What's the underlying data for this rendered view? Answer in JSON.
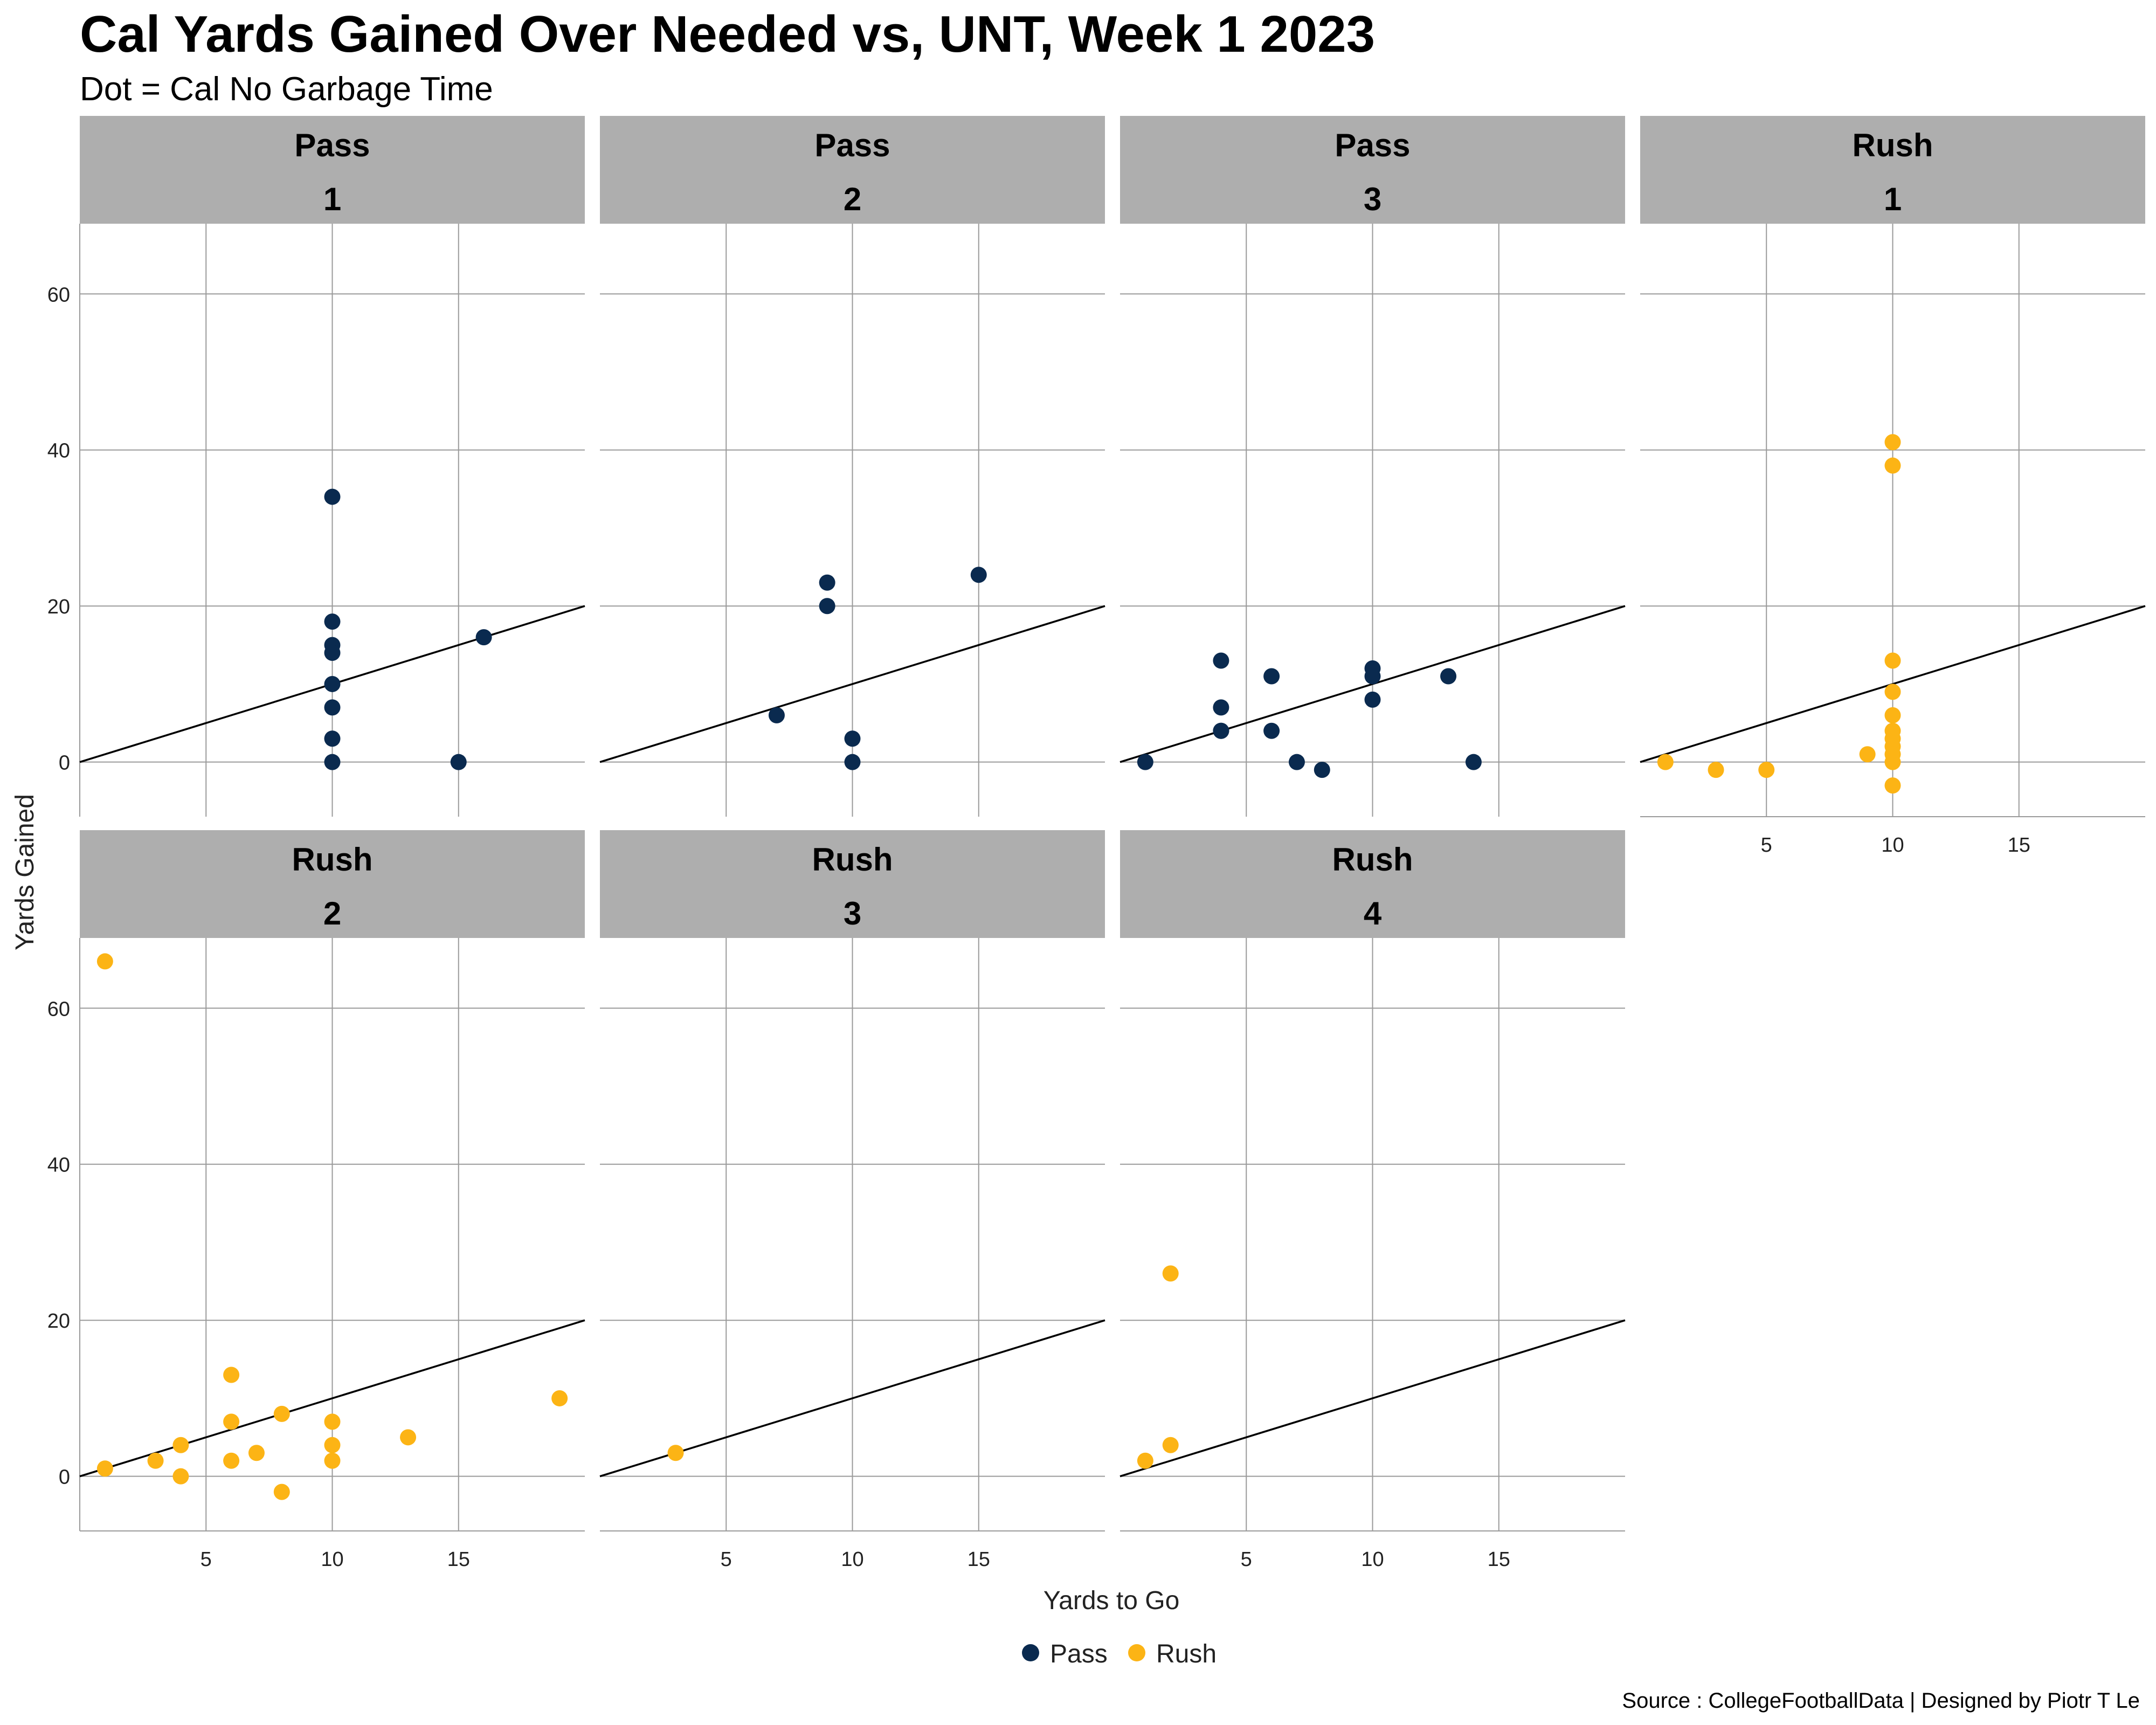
{
  "chart_data": {
    "type": "scatter",
    "title": "Cal Yards Gained Over Needed vs, UNT, Week 1 2023",
    "subtitle": "Dot = Cal No Garbage Time",
    "xlabel": "Yards to Go",
    "ylabel": "Yards Gained",
    "caption": "Source : CollegeFootballData | Designed by Piotr T Le",
    "xlim": [
      0,
      20
    ],
    "ylim": [
      -7,
      69
    ],
    "x_ticks": [
      5,
      10,
      15
    ],
    "y_ticks": [
      0,
      20,
      40,
      60
    ],
    "reference_line": {
      "slope": 1,
      "intercept": 0
    },
    "colors": {
      "Pass": "#0a2a4f",
      "Rush": "#fcb415",
      "strip": "#aeaeae",
      "grid": "#9a9a9a",
      "line": "#000000"
    },
    "legend": [
      {
        "label": "Pass",
        "color": "#0a2a4f"
      },
      {
        "label": "Rush",
        "color": "#fcb415"
      }
    ],
    "legend_position": "bottom",
    "facets": [
      {
        "play_type": "Pass",
        "down": "1",
        "points": [
          [
            10,
            34
          ],
          [
            10,
            18
          ],
          [
            10,
            15
          ],
          [
            10,
            14
          ],
          [
            10,
            10
          ],
          [
            10,
            7
          ],
          [
            10,
            3
          ],
          [
            10,
            0
          ],
          [
            15,
            0
          ],
          [
            16,
            16
          ]
        ]
      },
      {
        "play_type": "Pass",
        "down": "2",
        "points": [
          [
            7,
            6
          ],
          [
            9,
            23
          ],
          [
            9,
            20
          ],
          [
            10,
            3
          ],
          [
            10,
            0
          ],
          [
            15,
            24
          ]
        ]
      },
      {
        "play_type": "Pass",
        "down": "3",
        "points": [
          [
            1,
            0
          ],
          [
            4,
            13
          ],
          [
            4,
            7
          ],
          [
            4,
            4
          ],
          [
            4,
            4
          ],
          [
            6,
            11
          ],
          [
            6,
            4
          ],
          [
            7,
            0
          ],
          [
            8,
            -1
          ],
          [
            10,
            12
          ],
          [
            10,
            11
          ],
          [
            10,
            8
          ],
          [
            13,
            11
          ],
          [
            14,
            0
          ]
        ]
      },
      {
        "play_type": "Rush",
        "down": "1",
        "points": [
          [
            1,
            0
          ],
          [
            3,
            -1
          ],
          [
            5,
            -1
          ],
          [
            9,
            1
          ],
          [
            10,
            41
          ],
          [
            10,
            38
          ],
          [
            10,
            13
          ],
          [
            10,
            9
          ],
          [
            10,
            6
          ],
          [
            10,
            4
          ],
          [
            10,
            3
          ],
          [
            10,
            2
          ],
          [
            10,
            1
          ],
          [
            10,
            0
          ],
          [
            10,
            -3
          ]
        ]
      },
      {
        "play_type": "Rush",
        "down": "2",
        "points": [
          [
            1,
            66
          ],
          [
            1,
            1
          ],
          [
            3,
            2
          ],
          [
            4,
            4
          ],
          [
            4,
            0
          ],
          [
            6,
            13
          ],
          [
            6,
            7
          ],
          [
            6,
            2
          ],
          [
            7,
            3
          ],
          [
            8,
            8
          ],
          [
            8,
            -2
          ],
          [
            10,
            7
          ],
          [
            10,
            4
          ],
          [
            10,
            2
          ],
          [
            13,
            5
          ],
          [
            19,
            10
          ]
        ]
      },
      {
        "play_type": "Rush",
        "down": "3",
        "points": [
          [
            3,
            3
          ]
        ]
      },
      {
        "play_type": "Rush",
        "down": "4",
        "points": [
          [
            1,
            2
          ],
          [
            2,
            26
          ],
          [
            2,
            4
          ]
        ]
      }
    ]
  }
}
